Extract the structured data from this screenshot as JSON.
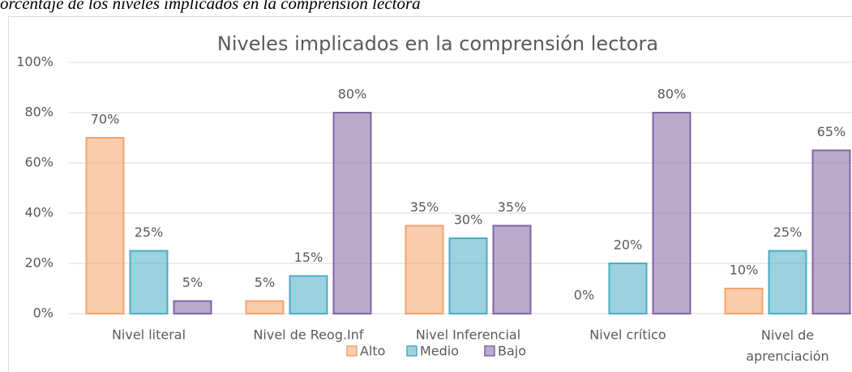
{
  "caption": "orcentaje de los niveles implicados en la comprensión lectora",
  "chart_data": {
    "type": "bar",
    "title": "Niveles implicados en la comprensión lectora",
    "categories": [
      "Nivel literal",
      "Nivel de Reog.Inf",
      "Nivel Inferencial",
      "Nivel crítico",
      "Nivel de\naprenciación"
    ],
    "series": [
      {
        "name": "Alto",
        "color": "#f4a46a",
        "values": [
          70,
          5,
          35,
          0,
          10
        ],
        "value_labels": [
          "70%",
          "5%",
          "35%",
          "0%",
          "10%"
        ]
      },
      {
        "name": "Medio",
        "color": "#4bacc6",
        "values": [
          25,
          15,
          30,
          20,
          25
        ],
        "value_labels": [
          "25%",
          "15%",
          "30%",
          "20%",
          "25%"
        ]
      },
      {
        "name": "Bajo",
        "color": "#8064a2",
        "values": [
          5,
          80,
          35,
          80,
          65
        ],
        "value_labels": [
          "5%",
          "80%",
          "35%",
          "80%",
          "65%"
        ]
      }
    ],
    "ylim": [
      0,
      100
    ],
    "yticks": [
      {
        "value": 0,
        "label": "0%"
      },
      {
        "value": 20,
        "label": "20%"
      },
      {
        "value": 40,
        "label": "40%"
      },
      {
        "value": 60,
        "label": "60%"
      },
      {
        "value": 80,
        "label": "80%"
      },
      {
        "value": 100,
        "label": "100%"
      }
    ],
    "grid": true,
    "legend": "bottom"
  }
}
